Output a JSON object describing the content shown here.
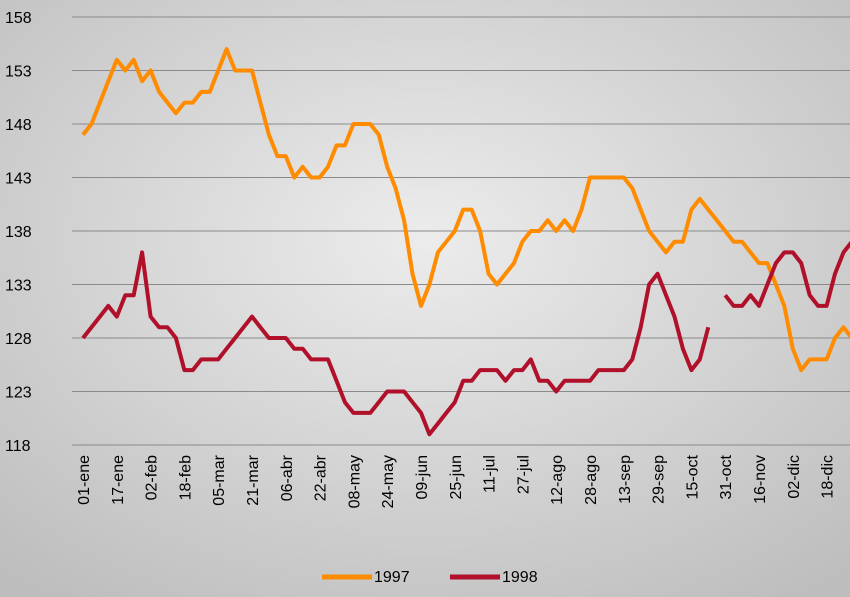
{
  "chart_data": {
    "type": "line",
    "categories": [
      "01-ene",
      null,
      null,
      null,
      "17-ene",
      null,
      null,
      null,
      "02-feb",
      null,
      null,
      null,
      "18-feb",
      null,
      null,
      null,
      "05-mar",
      null,
      null,
      null,
      "21-mar",
      null,
      null,
      null,
      "06-abr",
      null,
      null,
      null,
      "22-abr",
      null,
      null,
      null,
      "08-may",
      null,
      null,
      null,
      "24-may",
      null,
      null,
      null,
      "09-jun",
      null,
      null,
      null,
      "25-jun",
      null,
      null,
      null,
      "11-jul",
      null,
      null,
      null,
      "27-jul",
      null,
      null,
      null,
      "12-ago",
      null,
      null,
      null,
      "28-ago",
      null,
      null,
      null,
      "13-sep",
      null,
      null,
      null,
      "29-sep",
      null,
      null,
      null,
      "15-oct",
      null,
      null,
      null,
      "31-oct",
      null,
      null,
      null,
      "16-nov",
      null,
      null,
      null,
      "02-dic",
      null,
      null,
      null,
      "18-dic",
      null,
      null,
      null
    ],
    "series": [
      {
        "name": "1997",
        "color": "#ff8c00",
        "values": [
          147,
          148,
          150,
          152,
          154,
          153,
          154,
          152,
          153,
          151,
          150,
          149,
          150,
          150,
          151,
          151,
          153,
          155,
          153,
          153,
          153,
          150,
          147,
          145,
          145,
          143,
          144,
          143,
          143,
          144,
          146,
          146,
          148,
          148,
          148,
          147,
          144,
          142,
          139,
          134,
          131,
          133,
          136,
          137,
          138,
          140,
          140,
          138,
          134,
          133,
          134,
          135,
          137,
          138,
          138,
          139,
          138,
          139,
          138,
          140,
          143,
          143,
          143,
          143,
          143,
          142,
          140,
          138,
          137,
          136,
          137,
          137,
          140,
          141,
          140,
          139,
          138,
          137,
          137,
          136,
          135,
          135,
          133,
          131,
          127,
          125,
          126,
          126,
          126,
          128,
          129,
          128
        ]
      },
      {
        "name": "1998",
        "color": "#b0102a",
        "values": [
          128,
          129,
          130,
          131,
          130,
          132,
          132,
          136,
          130,
          129,
          129,
          128,
          125,
          125,
          126,
          126,
          126,
          127,
          128,
          129,
          130,
          129,
          128,
          128,
          128,
          127,
          127,
          126,
          126,
          126,
          124,
          122,
          121,
          121,
          121,
          122,
          123,
          123,
          123,
          122,
          121,
          119,
          120,
          121,
          122,
          124,
          124,
          125,
          125,
          125,
          124,
          125,
          125,
          126,
          124,
          124,
          123,
          124,
          124,
          124,
          124,
          125,
          125,
          125,
          125,
          126,
          129,
          133,
          134,
          132,
          130,
          127,
          125,
          126,
          129,
          null,
          132,
          131,
          131,
          132,
          131,
          133,
          135,
          136,
          136,
          135,
          132,
          131,
          131,
          134,
          136,
          137
        ]
      }
    ],
    "ylim": [
      118,
      158
    ],
    "yticks": [
      118,
      123,
      128,
      133,
      138,
      143,
      148,
      153,
      158
    ],
    "grid": true,
    "legend": "bottom"
  }
}
